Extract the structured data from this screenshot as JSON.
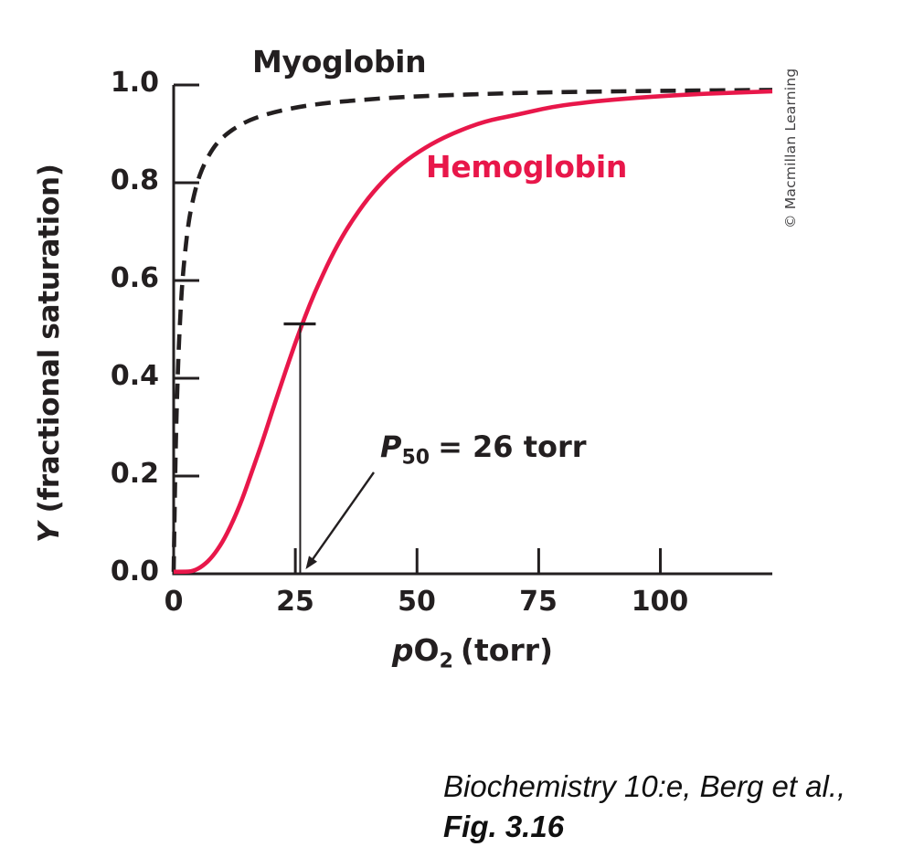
{
  "figure": {
    "curve_labels": {
      "myoglobin": "Myoglobin",
      "hemoglobin": "Hemoglobin"
    },
    "p50_annotation": {
      "p_label": "P",
      "p_subscript": "50",
      "rest": "= 26 torr"
    },
    "x_axis": {
      "p_label": "p",
      "o_label": "O",
      "o_subscript": "2",
      "rest": "(torr)",
      "ticks": [
        "0",
        "25",
        "50",
        "75",
        "100"
      ]
    },
    "y_axis": {
      "y_label": "Y",
      "rest": " (fractional saturation)",
      "ticks": [
        "1.0",
        "0.8",
        "0.6",
        "0.4",
        "0.2",
        "0.0"
      ]
    },
    "credit": "© Macmillan Learning",
    "caption_line1": "Biochemistry 10:e, Berg et al.,",
    "caption_line2": "Fig. 3.16",
    "colors": {
      "hemoglobin_red": "#e8174a",
      "ink_black": "#231f20",
      "credit_gray": "#414042"
    }
  },
  "chart_data": {
    "type": "line",
    "title": "",
    "xlabel": "pO2 (torr)",
    "ylabel": "Y (fractional saturation)",
    "xlim": [
      0,
      123
    ],
    "ylim": [
      0,
      1.0
    ],
    "x_ticks": [
      0,
      25,
      50,
      75,
      100
    ],
    "y_ticks": [
      1.0,
      0.8,
      0.6,
      0.4,
      0.2,
      0.0
    ],
    "grid": false,
    "legend_position": "inline-labels",
    "annotation": {
      "label": "P50 = 26 torr",
      "x": 26,
      "y": 0.5
    },
    "series": [
      {
        "name": "Myoglobin",
        "style": "dashed",
        "color": "#231f20",
        "points": [
          [
            0,
            0
          ],
          [
            0.3,
            0.2
          ],
          [
            0.6,
            0.333
          ],
          [
            1,
            0.455
          ],
          [
            1.5,
            0.556
          ],
          [
            2,
            0.625
          ],
          [
            2.8,
            0.7
          ],
          [
            3.6,
            0.75
          ],
          [
            4.8,
            0.8
          ],
          [
            6,
            0.833
          ],
          [
            8,
            0.87
          ],
          [
            10,
            0.893
          ],
          [
            13,
            0.915
          ],
          [
            16,
            0.93
          ],
          [
            20,
            0.943
          ],
          [
            25,
            0.954
          ],
          [
            31,
            0.963
          ],
          [
            38,
            0.969
          ],
          [
            46,
            0.975
          ],
          [
            56,
            0.979
          ],
          [
            68,
            0.983
          ],
          [
            82,
            0.986
          ],
          [
            100,
            0.988
          ],
          [
            123,
            0.99
          ]
        ]
      },
      {
        "name": "Hemoglobin",
        "style": "solid",
        "color": "#e8174a",
        "points": [
          [
            0,
            0
          ],
          [
            2,
            0.001
          ],
          [
            4,
            0.005
          ],
          [
            6,
            0.016
          ],
          [
            8,
            0.035
          ],
          [
            10,
            0.064
          ],
          [
            12,
            0.103
          ],
          [
            14,
            0.15
          ],
          [
            16,
            0.207
          ],
          [
            18,
            0.263
          ],
          [
            20,
            0.325
          ],
          [
            22,
            0.385
          ],
          [
            24,
            0.444
          ],
          [
            26,
            0.5
          ],
          [
            28,
            0.552
          ],
          [
            30,
            0.598
          ],
          [
            33,
            0.661
          ],
          [
            36,
            0.713
          ],
          [
            40,
            0.77
          ],
          [
            44,
            0.814
          ],
          [
            48,
            0.848
          ],
          [
            53,
            0.88
          ],
          [
            58,
            0.904
          ],
          [
            64,
            0.926
          ],
          [
            70,
            0.938
          ],
          [
            78,
            0.956
          ],
          [
            86,
            0.966
          ],
          [
            95,
            0.974
          ],
          [
            105,
            0.98
          ],
          [
            114,
            0.984
          ],
          [
            123,
            0.987
          ]
        ]
      }
    ]
  }
}
